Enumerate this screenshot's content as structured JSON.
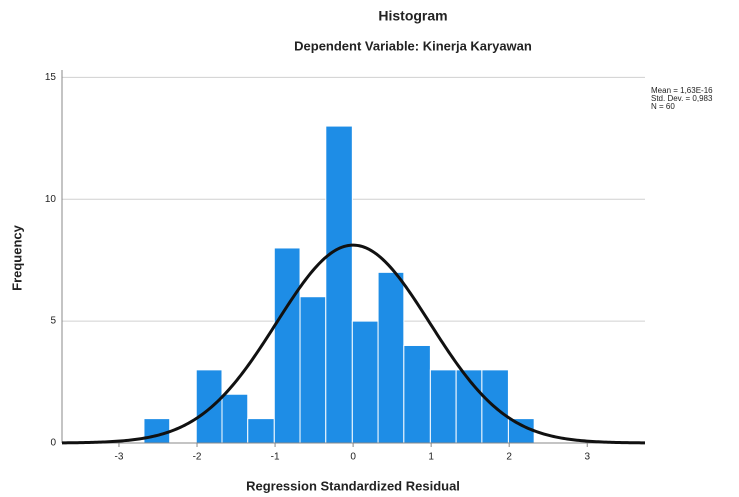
{
  "chart_data": {
    "type": "histogram",
    "title": "Histogram",
    "subtitle": "Dependent Variable: Kinerja Karyawan",
    "x_label": "Regression Standardized Residual",
    "y_label": "Frequency",
    "bins": [
      -2.68,
      -2.35,
      -2.01,
      -1.68,
      -1.35,
      -1.01,
      -0.68,
      -0.35,
      -0.01,
      0.32,
      0.65,
      0.99,
      1.32,
      1.65,
      1.99,
      2.32
    ],
    "values": [
      1,
      0,
      3,
      2,
      1,
      8,
      6,
      13,
      5,
      7,
      4,
      3,
      3,
      3,
      1
    ],
    "color": "#1e8de6",
    "curve": {
      "mean": 1.63e-16,
      "sd": 0.983,
      "n": 60,
      "color": "#111111"
    },
    "stats_text": [
      "Mean = 1,63E-16",
      "Std. Dev. = 0,983",
      "N = 60"
    ],
    "xlim": [
      -3.73,
      3.74
    ],
    "ylim": [
      0,
      15.3
    ],
    "xticks": [
      -3,
      -2,
      -1,
      0,
      1,
      2,
      3
    ],
    "yticks": [
      0,
      5,
      10,
      15
    ],
    "grid": true
  }
}
